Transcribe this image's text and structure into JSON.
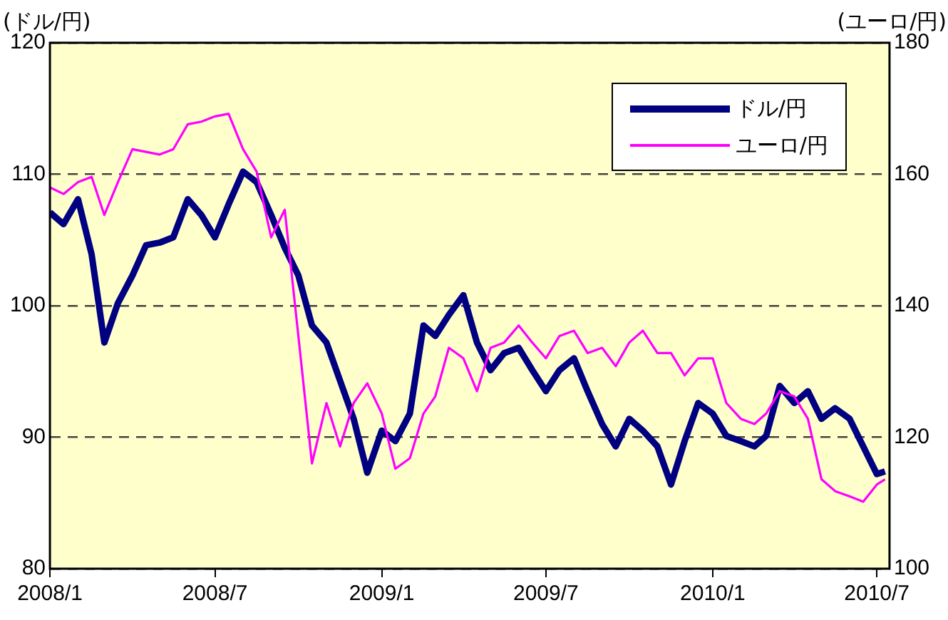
{
  "chart_data": {
    "type": "line",
    "ylabel": "(ドル/円)",
    "y2label": "(ユーロ/円)",
    "x": [
      "2008-01-01",
      "2008-01-16",
      "2008-02-01",
      "2008-02-16",
      "2008-03-01",
      "2008-03-16",
      "2008-04-01",
      "2008-04-16",
      "2008-05-01",
      "2008-05-16",
      "2008-06-01",
      "2008-06-16",
      "2008-07-01",
      "2008-07-16",
      "2008-08-01",
      "2008-08-16",
      "2008-09-01",
      "2008-09-16",
      "2008-10-01",
      "2008-10-16",
      "2008-11-01",
      "2008-11-16",
      "2008-12-01",
      "2008-12-16",
      "2009-01-01",
      "2009-01-16",
      "2009-02-01",
      "2009-02-16",
      "2009-03-01",
      "2009-03-16",
      "2009-04-01",
      "2009-04-16",
      "2009-05-01",
      "2009-05-16",
      "2009-06-01",
      "2009-06-16",
      "2009-07-01",
      "2009-07-16",
      "2009-08-01",
      "2009-08-16",
      "2009-09-01",
      "2009-09-16",
      "2009-10-01",
      "2009-10-16",
      "2009-11-01",
      "2009-11-16",
      "2009-12-01",
      "2009-12-16",
      "2010-01-01",
      "2010-01-16",
      "2010-02-01",
      "2010-02-16",
      "2010-03-01",
      "2010-03-16",
      "2010-04-01",
      "2010-04-16",
      "2010-05-01",
      "2010-05-16",
      "2010-06-01",
      "2010-06-16",
      "2010-07-01",
      "2010-07-10"
    ],
    "series": [
      {
        "name": "ドル/円",
        "color": "#000080",
        "values": [
          107.1,
          106.2,
          108.1,
          103.9,
          97.2,
          100.2,
          102.3,
          104.6,
          104.8,
          105.2,
          108.1,
          106.9,
          105.2,
          107.7,
          110.2,
          109.4,
          106.9,
          104.4,
          102.3,
          98.5,
          97.2,
          94.3,
          91.4,
          87.3,
          90.5,
          89.7,
          91.8,
          98.5,
          97.7,
          99.3,
          100.8,
          97.2,
          95.1,
          96.4,
          96.8,
          95.1,
          93.5,
          95.1,
          96,
          93.5,
          91,
          89.3,
          91.4,
          90.5,
          89.3,
          86.4,
          89.7,
          92.6,
          91.8,
          90.1,
          89.7,
          89.3,
          90.1,
          93.9,
          92.6,
          93.5,
          91.4,
          92.2,
          91.4,
          89.3,
          87.2,
          87.4
        ]
      },
      {
        "name": "ユーロ/円",
        "color": "#ff00ff",
        "axis": "y2",
        "values": [
          158,
          157,
          158.8,
          159.6,
          153.8,
          158.8,
          163.8,
          163.4,
          163,
          163.8,
          167.6,
          168,
          168.8,
          169.2,
          163.8,
          160.4,
          150.4,
          154.6,
          135.4,
          116,
          125.2,
          118.6,
          125.2,
          128.2,
          123.6,
          115.2,
          116.8,
          123.6,
          126.2,
          133.6,
          132,
          127,
          133.6,
          134.4,
          137,
          134.4,
          132,
          135.4,
          136.2,
          132.8,
          133.6,
          130.8,
          134.4,
          136.2,
          132.8,
          132.8,
          129.4,
          132,
          132,
          125.2,
          122.8,
          122,
          123.6,
          127,
          126.2,
          122.8,
          113.6,
          111.8,
          111,
          110.2,
          112.8,
          113.6
        ]
      }
    ],
    "xlim": [
      "2008-01-01",
      "2010-07-15"
    ],
    "xticks": [
      {
        "value": "2008-01-01",
        "label": "2008/1"
      },
      {
        "value": "2008-07-01",
        "label": "2008/7"
      },
      {
        "value": "2009-01-01",
        "label": "2009/1"
      },
      {
        "value": "2009-07-01",
        "label": "2009/7"
      },
      {
        "value": "2010-01-01",
        "label": "2010/1"
      },
      {
        "value": "2010-07-01",
        "label": "2010/7"
      }
    ],
    "ylim": [
      80,
      120
    ],
    "yticks": [
      80,
      90,
      100,
      110,
      120
    ],
    "y2lim": [
      100,
      180
    ],
    "y2ticks": [
      100,
      120,
      140,
      160,
      180
    ],
    "grid": "y",
    "legend": "top right",
    "marker": "none",
    "line_style": "solid"
  }
}
